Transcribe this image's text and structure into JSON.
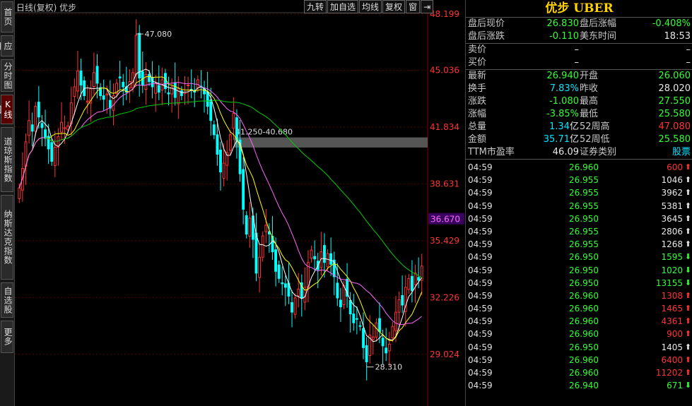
{
  "sidebar": [
    {
      "label": "首页",
      "active": false
    },
    {
      "label": "应用",
      "active": false
    },
    {
      "label": "分时图",
      "active": false
    },
    {
      "label": "K线图",
      "active": true
    },
    {
      "label": "道琼斯指数",
      "active": false
    },
    {
      "label": "纳斯达克指数",
      "active": false
    },
    {
      "label": "自选股",
      "active": false
    },
    {
      "label": "更多",
      "active": false
    }
  ],
  "chart_header": {
    "title": "日线(复权) 优步"
  },
  "toolbar": {
    "nine": "九转",
    "add": "加自选",
    "ma": "均线",
    "fq": "复权",
    "win": "窗",
    "arrow": "⇥"
  },
  "price_axis": [
    "48.199",
    "45.036",
    "41.834",
    "38.631",
    "35.429",
    "32.226",
    "29.024"
  ],
  "current_price_tag": "36.670",
  "annotations": {
    "high": "47.080",
    "low": "28.310",
    "range": "41.250-40.680"
  },
  "quote": {
    "title": "优步 UBER",
    "after_price_label": "盘后现价",
    "after_price": "26.830",
    "after_pct_label": "盘后涨幅",
    "after_pct": "-0.408%",
    "after_chg_label": "盘后涨跌",
    "after_chg": "-0.110",
    "us_time_label": "美东时间",
    "us_time": "18:53",
    "sell_label": "卖价",
    "sell_val": "–",
    "sell_vol": "–",
    "buy_label": "买价",
    "buy_val": "–",
    "buy_vol": "–",
    "last_label": "最新",
    "last": "26.940",
    "open_label": "开盘",
    "open": "26.060",
    "turn_label": "换手",
    "turn": "7.83%",
    "prev_label": "昨收",
    "prev": "28.020",
    "chg_label": "涨跌",
    "chg": "-1.080",
    "high_label": "最高",
    "high": "27.550",
    "pct_label": "涨幅",
    "pct": "-3.85%",
    "low_label": "最低",
    "low": "25.580",
    "cap_label": "总量",
    "cap": "1.34",
    "cap_unit": "亿",
    "h52_label": "52周高",
    "h52": "47.080",
    "amt_label": "金额",
    "amt": "35.71",
    "amt_unit": "亿",
    "l52_label": "52周低",
    "l52": "25.580",
    "pe_label": "TTM市盈率",
    "pe": "46.09",
    "cat_label": "证券类别",
    "cat": "股票"
  },
  "ticks": [
    {
      "time": "04:59",
      "price": "26.960",
      "vol": "600",
      "dir": "up"
    },
    {
      "time": "04:59",
      "price": "26.955",
      "vol": "1046",
      "dir": "neutral"
    },
    {
      "time": "04:59",
      "price": "26.955",
      "vol": "3962",
      "dir": "neutral"
    },
    {
      "time": "04:59",
      "price": "26.955",
      "vol": "5381",
      "dir": "neutral"
    },
    {
      "time": "04:59",
      "price": "26.950",
      "vol": "3645",
      "dir": "neutral"
    },
    {
      "time": "04:59",
      "price": "26.955",
      "vol": "2806",
      "dir": "neutral"
    },
    {
      "time": "04:59",
      "price": "26.955",
      "vol": "1268",
      "dir": "neutral"
    },
    {
      "time": "04:59",
      "price": "26.950",
      "vol": "1595",
      "dir": "down"
    },
    {
      "time": "04:59",
      "price": "26.950",
      "vol": "1020",
      "dir": "down"
    },
    {
      "time": "04:59",
      "price": "26.950",
      "vol": "13155",
      "dir": "down"
    },
    {
      "time": "04:59",
      "price": "26.960",
      "vol": "1308",
      "dir": "up"
    },
    {
      "time": "04:59",
      "price": "26.960",
      "vol": "1465",
      "dir": "up"
    },
    {
      "time": "04:59",
      "price": "26.960",
      "vol": "4361",
      "dir": "up"
    },
    {
      "time": "04:59",
      "price": "26.960",
      "vol": "900",
      "dir": "up"
    },
    {
      "time": "04:59",
      "price": "26.950",
      "vol": "1405",
      "dir": "neutral"
    },
    {
      "time": "04:59",
      "price": "26.960",
      "vol": "6400",
      "dir": "up"
    },
    {
      "time": "04:59",
      "price": "26.960",
      "vol": "11202",
      "dir": "up"
    },
    {
      "time": "04:59",
      "price": "26.940",
      "vol": "671",
      "dir": "down"
    }
  ],
  "colors": {
    "up": "#ff3333",
    "down": "#33ff33",
    "neutral": "#e8e8e8",
    "grid": "#5a0000",
    "ma5": "#ffffff",
    "ma10": "#ffff00",
    "ma20": "#ff66ff",
    "ma60": "#00cc00"
  },
  "chart_data": {
    "type": "candlestick",
    "y_ticks": [
      48.199,
      45.036,
      41.834,
      38.631,
      35.429,
      32.226,
      29.024
    ],
    "ylim": [
      28.0,
      48.5
    ],
    "closes": [
      38.4,
      39.5,
      41.0,
      42.2,
      41.6,
      43.0,
      42.4,
      41.8,
      41.2,
      40.6,
      39.9,
      40.7,
      41.3,
      42.1,
      41.8,
      41.9,
      43.2,
      44.1,
      45.0,
      44.2,
      43.6,
      43.3,
      44.0,
      44.9,
      44.3,
      43.6,
      43.4,
      43.7,
      42.9,
      43.6,
      44.3,
      44.6,
      44.1,
      43.8,
      44.4,
      44.9,
      47.0,
      44.6,
      44.2,
      44.8,
      44.4,
      44.1,
      44.3,
      43.8,
      44.5,
      44.0,
      43.7,
      44.1,
      43.5,
      44.0,
      43.6,
      43.8,
      44.2,
      43.9,
      43.8,
      44.5,
      44.1,
      43.7,
      43.0,
      42.2,
      41.4,
      40.3,
      39.3,
      39.8,
      40.4,
      41.4,
      42.6,
      41.1,
      39.2,
      37.2,
      35.8,
      36.7,
      35.5,
      33.6,
      34.5,
      35.7,
      36.3,
      35.8,
      34.8,
      33.7,
      33.3,
      33.0,
      32.8,
      32.3,
      31.4,
      32.2,
      32.7,
      32.2,
      32.8,
      34.2,
      34.9,
      34.4,
      33.8,
      34.8,
      34.2,
      34.7,
      34.1,
      33.4,
      32.2,
      31.7,
      32.9,
      32.3,
      31.3,
      30.8,
      31.0,
      30.6,
      29.4,
      28.6,
      30.1,
      30.0,
      30.8,
      30.3,
      29.5,
      29.1,
      29.6,
      30.6,
      31.4,
      32.1,
      31.8,
      32.8,
      33.3,
      32.6,
      33.6,
      33.2,
      34.0
    ]
  }
}
